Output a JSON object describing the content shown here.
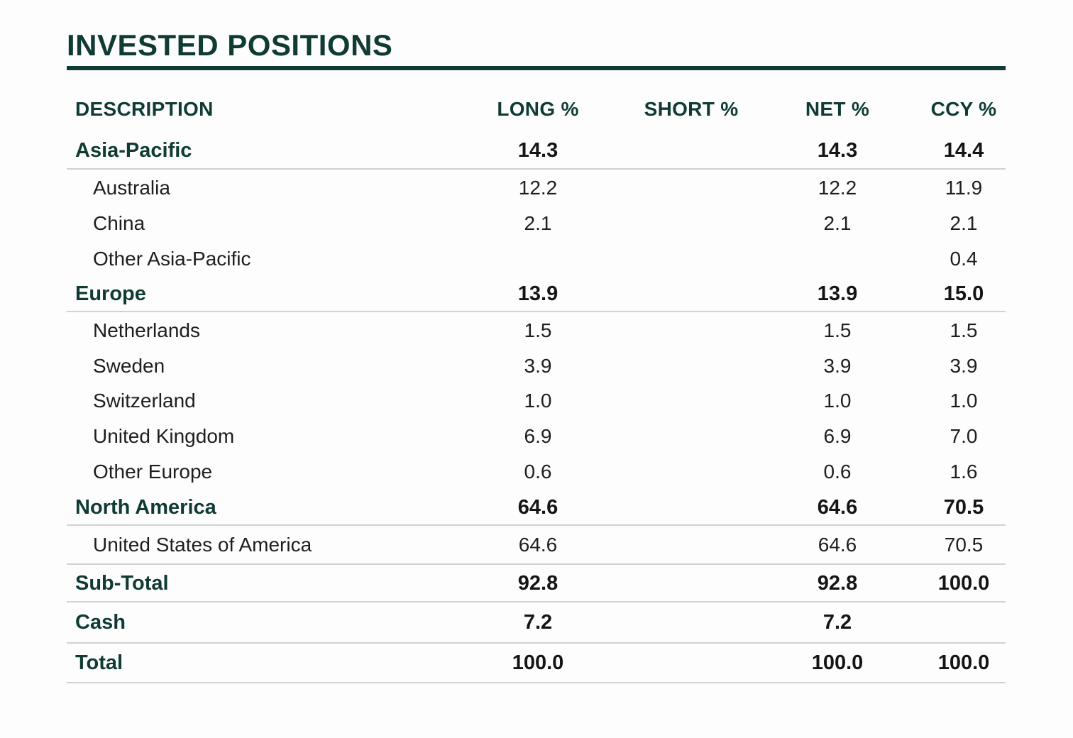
{
  "title": "INVESTED POSITIONS",
  "columns": {
    "description": "DESCRIPTION",
    "long": "LONG %",
    "short": "SHORT %",
    "net": "NET %",
    "ccy": "CCY %"
  },
  "rows": [
    {
      "description": "Asia-Pacific",
      "long": "14.3",
      "short": "",
      "net": "14.3",
      "ccy": "14.4"
    },
    {
      "description": "Australia",
      "long": "12.2",
      "short": "",
      "net": "12.2",
      "ccy": "11.9"
    },
    {
      "description": "China",
      "long": "2.1",
      "short": "",
      "net": "2.1",
      "ccy": "2.1"
    },
    {
      "description": "Other Asia-Pacific",
      "long": "",
      "short": "",
      "net": "",
      "ccy": "0.4"
    },
    {
      "description": "Europe",
      "long": "13.9",
      "short": "",
      "net": "13.9",
      "ccy": "15.0"
    },
    {
      "description": "Netherlands",
      "long": "1.5",
      "short": "",
      "net": "1.5",
      "ccy": "1.5"
    },
    {
      "description": "Sweden",
      "long": "3.9",
      "short": "",
      "net": "3.9",
      "ccy": "3.9"
    },
    {
      "description": "Switzerland",
      "long": "1.0",
      "short": "",
      "net": "1.0",
      "ccy": "1.0"
    },
    {
      "description": "United Kingdom",
      "long": "6.9",
      "short": "",
      "net": "6.9",
      "ccy": "7.0"
    },
    {
      "description": "Other Europe",
      "long": "0.6",
      "short": "",
      "net": "0.6",
      "ccy": "1.6"
    },
    {
      "description": "North America",
      "long": "64.6",
      "short": "",
      "net": "64.6",
      "ccy": "70.5"
    },
    {
      "description": "United States of America",
      "long": "64.6",
      "short": "",
      "net": "64.6",
      "ccy": "70.5"
    },
    {
      "description": "Sub-Total",
      "long": "92.8",
      "short": "",
      "net": "92.8",
      "ccy": "100.0"
    },
    {
      "description": "Cash",
      "long": "7.2",
      "short": "",
      "net": "7.2",
      "ccy": ""
    },
    {
      "description": "Total",
      "long": "100.0",
      "short": "",
      "net": "100.0",
      "ccy": "100.0"
    }
  ]
}
